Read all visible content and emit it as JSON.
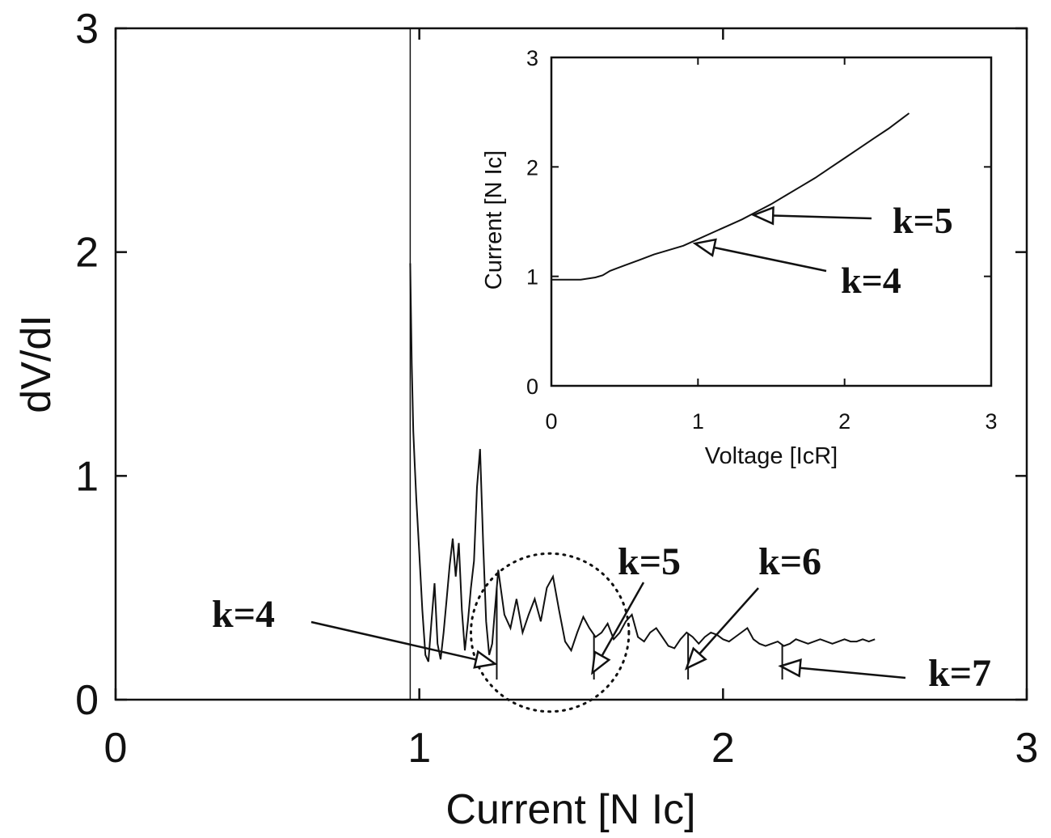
{
  "chart_data": [
    {
      "type": "line",
      "title": "",
      "xlabel": "Current [N Ic]",
      "ylabel": "dV/dI",
      "xlim": [
        0,
        3
      ],
      "ylim": [
        0,
        3
      ],
      "xticks": [
        "0",
        "1",
        "2",
        "3"
      ],
      "yticks": [
        "0",
        "1",
        "2",
        "3"
      ],
      "series": [
        {
          "x": [
            0.97,
            0.975,
            0.98,
            0.985,
            0.99,
            1.0,
            1.01,
            1.02,
            1.03,
            1.04,
            1.05,
            1.06,
            1.07,
            1.08,
            1.09,
            1.1,
            1.11,
            1.12,
            1.13,
            1.14,
            1.15,
            1.16,
            1.17,
            1.18,
            1.19,
            1.2,
            1.21,
            1.22,
            1.23,
            1.24,
            1.25,
            1.26,
            1.27,
            1.28,
            1.3,
            1.32,
            1.34,
            1.36,
            1.38,
            1.4,
            1.42,
            1.44,
            1.46,
            1.48,
            1.5,
            1.52,
            1.54,
            1.56,
            1.58,
            1.6,
            1.62,
            1.64,
            1.66,
            1.68,
            1.7,
            1.72,
            1.74,
            1.76,
            1.78,
            1.8,
            1.82,
            1.84,
            1.86,
            1.88,
            1.9,
            1.92,
            1.94,
            1.96,
            1.98,
            2.0,
            2.02,
            2.04,
            2.06,
            2.08,
            2.1,
            2.12,
            2.14,
            2.16,
            2.18,
            2.2,
            2.22,
            2.24,
            2.26,
            2.28,
            2.3,
            2.32,
            2.34,
            2.36,
            2.38,
            2.4,
            2.42,
            2.44,
            2.46,
            2.48,
            2.5
          ],
          "y": [
            1.95,
            1.5,
            1.2,
            1.05,
            0.9,
            0.65,
            0.4,
            0.2,
            0.17,
            0.35,
            0.52,
            0.25,
            0.18,
            0.3,
            0.45,
            0.6,
            0.72,
            0.55,
            0.7,
            0.4,
            0.22,
            0.35,
            0.5,
            0.62,
            0.95,
            1.12,
            0.7,
            0.35,
            0.2,
            0.25,
            0.42,
            0.58,
            0.48,
            0.38,
            0.32,
            0.45,
            0.3,
            0.38,
            0.45,
            0.35,
            0.5,
            0.55,
            0.4,
            0.26,
            0.22,
            0.3,
            0.37,
            0.32,
            0.28,
            0.3,
            0.34,
            0.27,
            0.3,
            0.35,
            0.38,
            0.28,
            0.26,
            0.3,
            0.32,
            0.28,
            0.24,
            0.23,
            0.27,
            0.3,
            0.28,
            0.25,
            0.28,
            0.3,
            0.29,
            0.27,
            0.26,
            0.28,
            0.3,
            0.32,
            0.27,
            0.25,
            0.24,
            0.25,
            0.26,
            0.24,
            0.25,
            0.27,
            0.26,
            0.25,
            0.26,
            0.27,
            0.26,
            0.25,
            0.26,
            0.27,
            0.26,
            0.26,
            0.27,
            0.26,
            0.27
          ]
        }
      ],
      "drops": [
        1.255,
        1.575,
        1.885,
        2.195
      ],
      "vline_x": 0.97,
      "annotations": [
        {
          "text": "k=4",
          "x": 1.255,
          "y": 0.16
        },
        {
          "text": "k=5",
          "x": 1.575,
          "y": 0.12
        },
        {
          "text": "k=6",
          "x": 1.885,
          "y": 0.14
        },
        {
          "text": "k=7",
          "x": 2.195,
          "y": 0.15
        }
      ],
      "dotted_circle": {
        "center": [
          1.43,
          0.3
        ],
        "radius_data": 0.26
      }
    },
    {
      "type": "line",
      "title": "",
      "xlabel": "Voltage [IcR]",
      "ylabel": "Current [N Ic]",
      "xlim": [
        0,
        3
      ],
      "ylim": [
        0,
        3
      ],
      "xticks": [
        "0",
        "1",
        "2",
        "3"
      ],
      "yticks": [
        "0",
        "1",
        "2",
        "3"
      ],
      "series": [
        {
          "x": [
            0,
            0.1,
            0.2,
            0.3,
            0.35,
            0.4,
            0.5,
            0.6,
            0.7,
            0.8,
            0.9,
            1.0,
            1.1,
            1.2,
            1.3,
            1.4,
            1.5,
            1.6,
            1.7,
            1.8,
            1.9,
            2.0,
            2.1,
            2.2,
            2.3,
            2.4,
            2.44
          ],
          "y": [
            0.97,
            0.97,
            0.97,
            0.99,
            1.01,
            1.05,
            1.1,
            1.15,
            1.2,
            1.24,
            1.28,
            1.34,
            1.4,
            1.46,
            1.52,
            1.59,
            1.66,
            1.74,
            1.82,
            1.9,
            1.99,
            2.08,
            2.17,
            2.26,
            2.35,
            2.45,
            2.49
          ]
        }
      ],
      "annotations": [
        {
          "text": "k=5",
          "x": 1.38,
          "y": 1.56
        },
        {
          "text": "k=4",
          "x": 0.98,
          "y": 1.3
        }
      ]
    }
  ]
}
